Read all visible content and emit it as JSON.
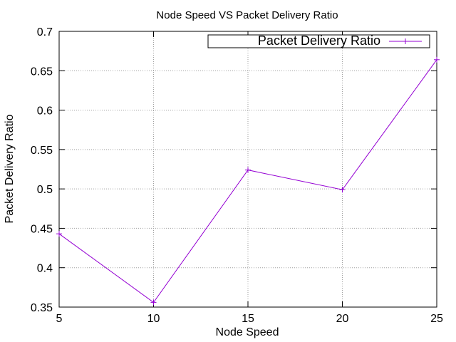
{
  "chart_data": {
    "type": "line",
    "title": "Node Speed VS Packet Delivery Ratio",
    "xlabel": "Node Speed",
    "ylabel": "Packet Delivery Ratio",
    "xlim": [
      5,
      25
    ],
    "ylim": [
      0.35,
      0.7
    ],
    "xticks": [
      "5",
      "10",
      "15",
      "20",
      "25"
    ],
    "yticks": [
      "0.35",
      "0.4",
      "0.45",
      "0.5",
      "0.55",
      "0.6",
      "0.65",
      "0.7"
    ],
    "grid": true,
    "legend_position": "top-right",
    "series": [
      {
        "name": "Packet Delivery Ratio",
        "color": "#9400d3",
        "marker": "plus",
        "x": [
          5,
          10,
          15,
          20,
          25
        ],
        "y": [
          0.443,
          0.356,
          0.524,
          0.499,
          0.664
        ]
      }
    ]
  }
}
